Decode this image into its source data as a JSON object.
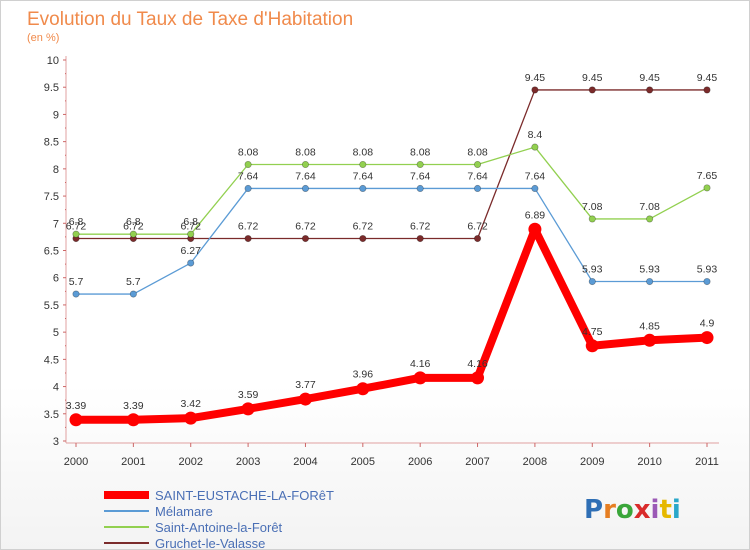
{
  "chart_data": {
    "type": "line",
    "title": "Evolution du Taux de Taxe d'Habitation",
    "subtitle": "(en %)",
    "xlabel": "",
    "ylabel": "",
    "x": [
      "2000",
      "2001",
      "2002",
      "2003",
      "2004",
      "2005",
      "2006",
      "2007",
      "2008",
      "2009",
      "2010",
      "2011"
    ],
    "ylim": [
      3,
      10
    ],
    "yticks": [
      "3",
      "3.5",
      "4",
      "4.5",
      "5",
      "5.5",
      "6",
      "6.5",
      "7",
      "7.5",
      "8",
      "8.5",
      "9",
      "9.5",
      "10"
    ],
    "grid": false,
    "legend_position": "bottom-left",
    "series": [
      {
        "name": "SAINT-EUSTACHE-LA-FORêT",
        "color": "#ff0000",
        "values": [
          3.39,
          3.39,
          3.42,
          3.59,
          3.77,
          3.96,
          4.16,
          4.16,
          6.89,
          4.75,
          4.85,
          4.9
        ],
        "labels": [
          "3.39",
          "3.39",
          "3.42",
          "3.59",
          "3.77",
          "3.96",
          "4.16",
          "4.16",
          "6.89",
          "4.75",
          "4.85",
          "4.9"
        ]
      },
      {
        "name": "Mélamare",
        "color": "#5b9bd5",
        "values": [
          5.7,
          5.7,
          6.27,
          7.64,
          7.64,
          7.64,
          7.64,
          7.64,
          7.64,
          5.93,
          5.93,
          5.93
        ],
        "labels": [
          "5.7",
          "5.7",
          "6.27",
          "7.64",
          "7.64",
          "7.64",
          "7.64",
          "7.64",
          "7.64",
          "5.93",
          "5.93",
          "5.93"
        ]
      },
      {
        "name": "Saint-Antoine-la-Forêt",
        "color": "#92d050",
        "values": [
          6.8,
          6.8,
          6.8,
          8.08,
          8.08,
          8.08,
          8.08,
          8.08,
          8.4,
          7.08,
          7.08,
          7.65
        ],
        "labels": [
          "6.8",
          "6.8",
          "6.8",
          "8.08",
          "8.08",
          "8.08",
          "8.08",
          "8.08",
          "8.4",
          "7.08",
          "7.08",
          "7.65"
        ]
      },
      {
        "name": "Gruchet-le-Valasse",
        "color": "#7b2b2b",
        "values": [
          6.72,
          6.72,
          6.72,
          6.72,
          6.72,
          6.72,
          6.72,
          6.72,
          9.45,
          9.45,
          9.45,
          9.45
        ],
        "labels": [
          "6.72",
          "6.72",
          "6.72",
          "6.72",
          "6.72",
          "6.72",
          "6.72",
          "6.72",
          "9.45",
          "9.45",
          "9.45",
          "9.45"
        ]
      }
    ]
  },
  "logo": {
    "text": "Proxiti",
    "letters": [
      "P",
      "r",
      "o",
      "x",
      "i",
      "t",
      "i"
    ],
    "colors": [
      "#2f6fb5",
      "#e67e22",
      "#3aa63a",
      "#d92b2b",
      "#9b59b6",
      "#e6b800",
      "#2aa7c9"
    ]
  }
}
